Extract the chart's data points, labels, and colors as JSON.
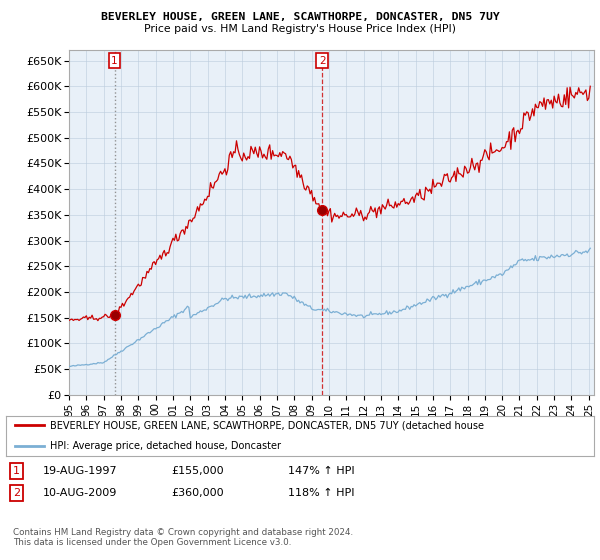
{
  "title1": "BEVERLEY HOUSE, GREEN LANE, SCAWTHORPE, DONCASTER, DN5 7UY",
  "title2": "Price paid vs. HM Land Registry's House Price Index (HPI)",
  "legend_line1": "BEVERLEY HOUSE, GREEN LANE, SCAWTHORPE, DONCASTER, DN5 7UY (detached house",
  "legend_line2": "HPI: Average price, detached house, Doncaster",
  "annotation1": {
    "num": "1",
    "date": "19-AUG-1997",
    "price": "£155,000",
    "hpi": "147% ↑ HPI"
  },
  "annotation2": {
    "num": "2",
    "date": "10-AUG-2009",
    "price": "£360,000",
    "hpi": "118% ↑ HPI"
  },
  "footer": "Contains HM Land Registry data © Crown copyright and database right 2024.\nThis data is licensed under the Open Government Licence v3.0.",
  "hpi_color": "#7bafd4",
  "price_color": "#cc0000",
  "background": "#ffffff",
  "chart_bg": "#ddeeff",
  "ylim": [
    0,
    670000
  ],
  "yticks": [
    0,
    50000,
    100000,
    150000,
    200000,
    250000,
    300000,
    350000,
    400000,
    450000,
    500000,
    550000,
    600000,
    650000
  ],
  "sale1_x": 1997.63,
  "sale1_y": 155000,
  "sale2_x": 2009.62,
  "sale2_y": 360000,
  "xmin": 1995.0,
  "xmax": 2025.3
}
